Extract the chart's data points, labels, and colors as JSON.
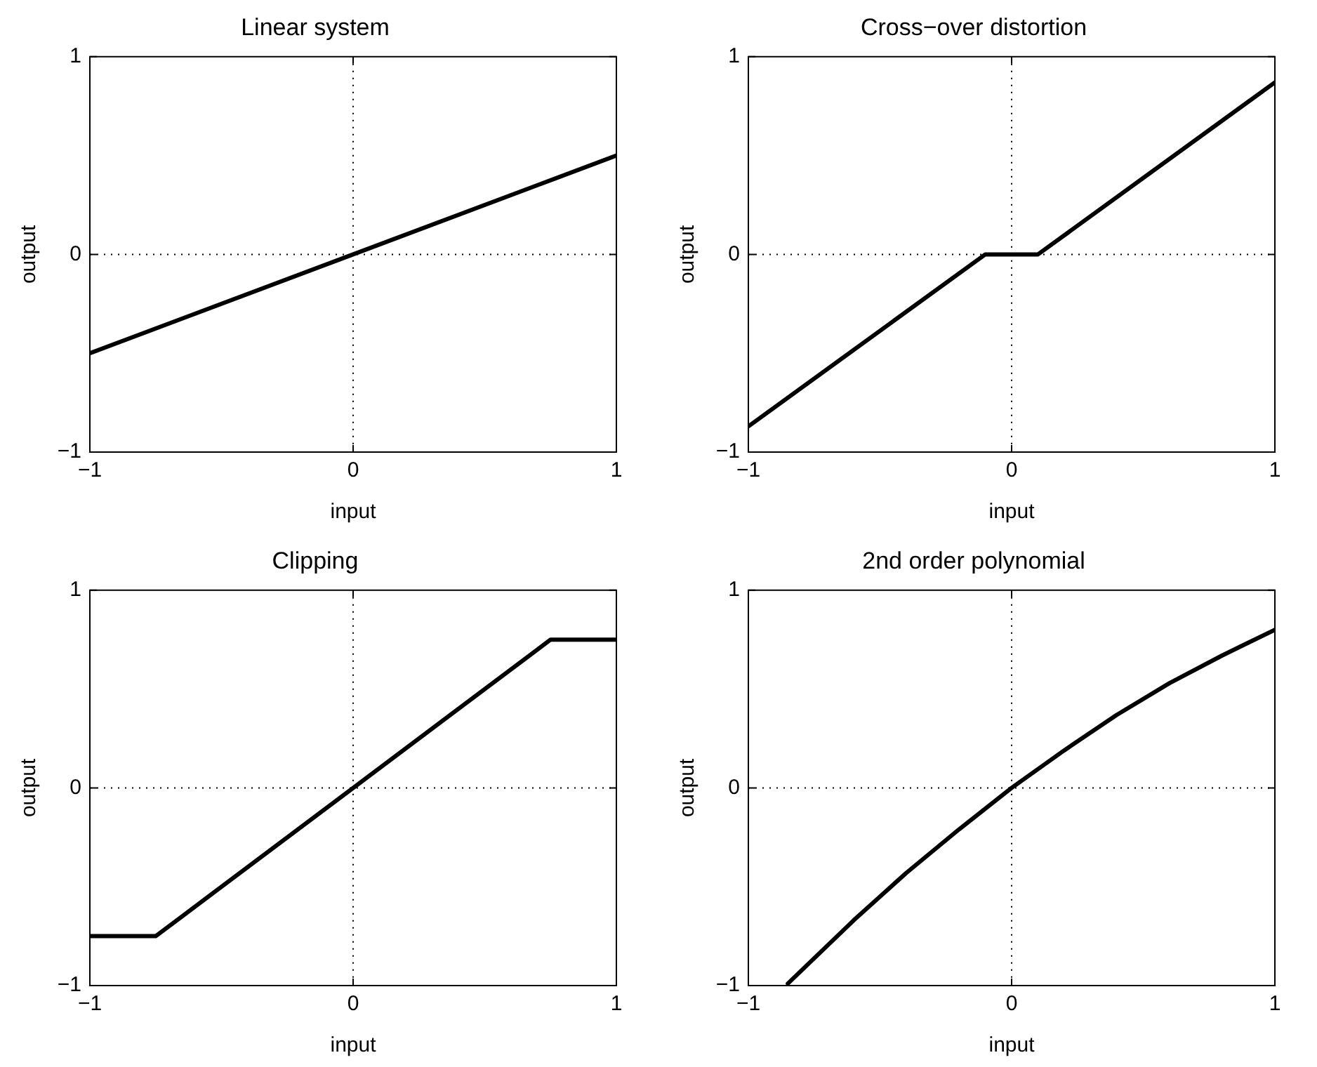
{
  "chart_data": [
    {
      "type": "line",
      "title": "Linear system",
      "xlabel": "input",
      "ylabel": "output",
      "xlim": [
        -1,
        1
      ],
      "ylim": [
        -1,
        1
      ],
      "xticks": [
        {
          "value": -1,
          "label": "−1"
        },
        {
          "value": 0,
          "label": "0"
        },
        {
          "value": 1,
          "label": "1"
        }
      ],
      "yticks": [
        {
          "value": -1,
          "label": "−1"
        },
        {
          "value": 0,
          "label": "0"
        },
        {
          "value": 1,
          "label": "1"
        }
      ],
      "grid": true,
      "legend": false,
      "marker": "none",
      "line_style": "solid",
      "series": [
        {
          "color": "#000000",
          "x": [
            -1,
            1
          ],
          "values": [
            -0.5,
            0.5
          ]
        }
      ]
    },
    {
      "type": "line",
      "title": "Cross−over distortion",
      "xlabel": "input",
      "ylabel": "output",
      "xlim": [
        -1,
        1
      ],
      "ylim": [
        -1,
        1
      ],
      "xticks": [
        {
          "value": -1,
          "label": "−1"
        },
        {
          "value": 0,
          "label": "0"
        },
        {
          "value": 1,
          "label": "1"
        }
      ],
      "yticks": [
        {
          "value": -1,
          "label": "−1"
        },
        {
          "value": 0,
          "label": "0"
        },
        {
          "value": 1,
          "label": "1"
        }
      ],
      "grid": true,
      "legend": false,
      "marker": "none",
      "line_style": "solid",
      "series": [
        {
          "color": "#000000",
          "x": [
            -1,
            -0.1,
            0.1,
            1
          ],
          "values": [
            -0.87,
            0,
            0,
            0.87
          ]
        }
      ]
    },
    {
      "type": "line",
      "title": "Clipping",
      "xlabel": "input",
      "ylabel": "output",
      "xlim": [
        -1,
        1
      ],
      "ylim": [
        -1,
        1
      ],
      "xticks": [
        {
          "value": -1,
          "label": "−1"
        },
        {
          "value": 0,
          "label": "0"
        },
        {
          "value": 1,
          "label": "1"
        }
      ],
      "yticks": [
        {
          "value": -1,
          "label": "−1"
        },
        {
          "value": 0,
          "label": "0"
        },
        {
          "value": 1,
          "label": "1"
        }
      ],
      "grid": true,
      "legend": false,
      "marker": "none",
      "line_style": "solid",
      "series": [
        {
          "color": "#000000",
          "x": [
            -1,
            -0.75,
            0.75,
            1
          ],
          "values": [
            -0.75,
            -0.75,
            0.75,
            0.75
          ]
        }
      ]
    },
    {
      "type": "line",
      "title": "2nd order polynomial",
      "xlabel": "input",
      "ylabel": "output",
      "xlim": [
        -1,
        1
      ],
      "ylim": [
        -1,
        1
      ],
      "xticks": [
        {
          "value": -1,
          "label": "−1"
        },
        {
          "value": 0,
          "label": "0"
        },
        {
          "value": 1,
          "label": "1"
        }
      ],
      "yticks": [
        {
          "value": -1,
          "label": "−1"
        },
        {
          "value": 0,
          "label": "0"
        },
        {
          "value": 1,
          "label": "1"
        }
      ],
      "grid": true,
      "legend": false,
      "marker": "none",
      "line_style": "solid",
      "series": [
        {
          "color": "#000000",
          "x": [
            -0.85,
            -0.6,
            -0.4,
            -0.2,
            0,
            0.2,
            0.4,
            0.6,
            0.8,
            1
          ],
          "values": [
            -0.99,
            -0.67,
            -0.43,
            -0.21,
            0,
            0.19,
            0.37,
            0.53,
            0.67,
            0.8
          ]
        }
      ]
    }
  ]
}
